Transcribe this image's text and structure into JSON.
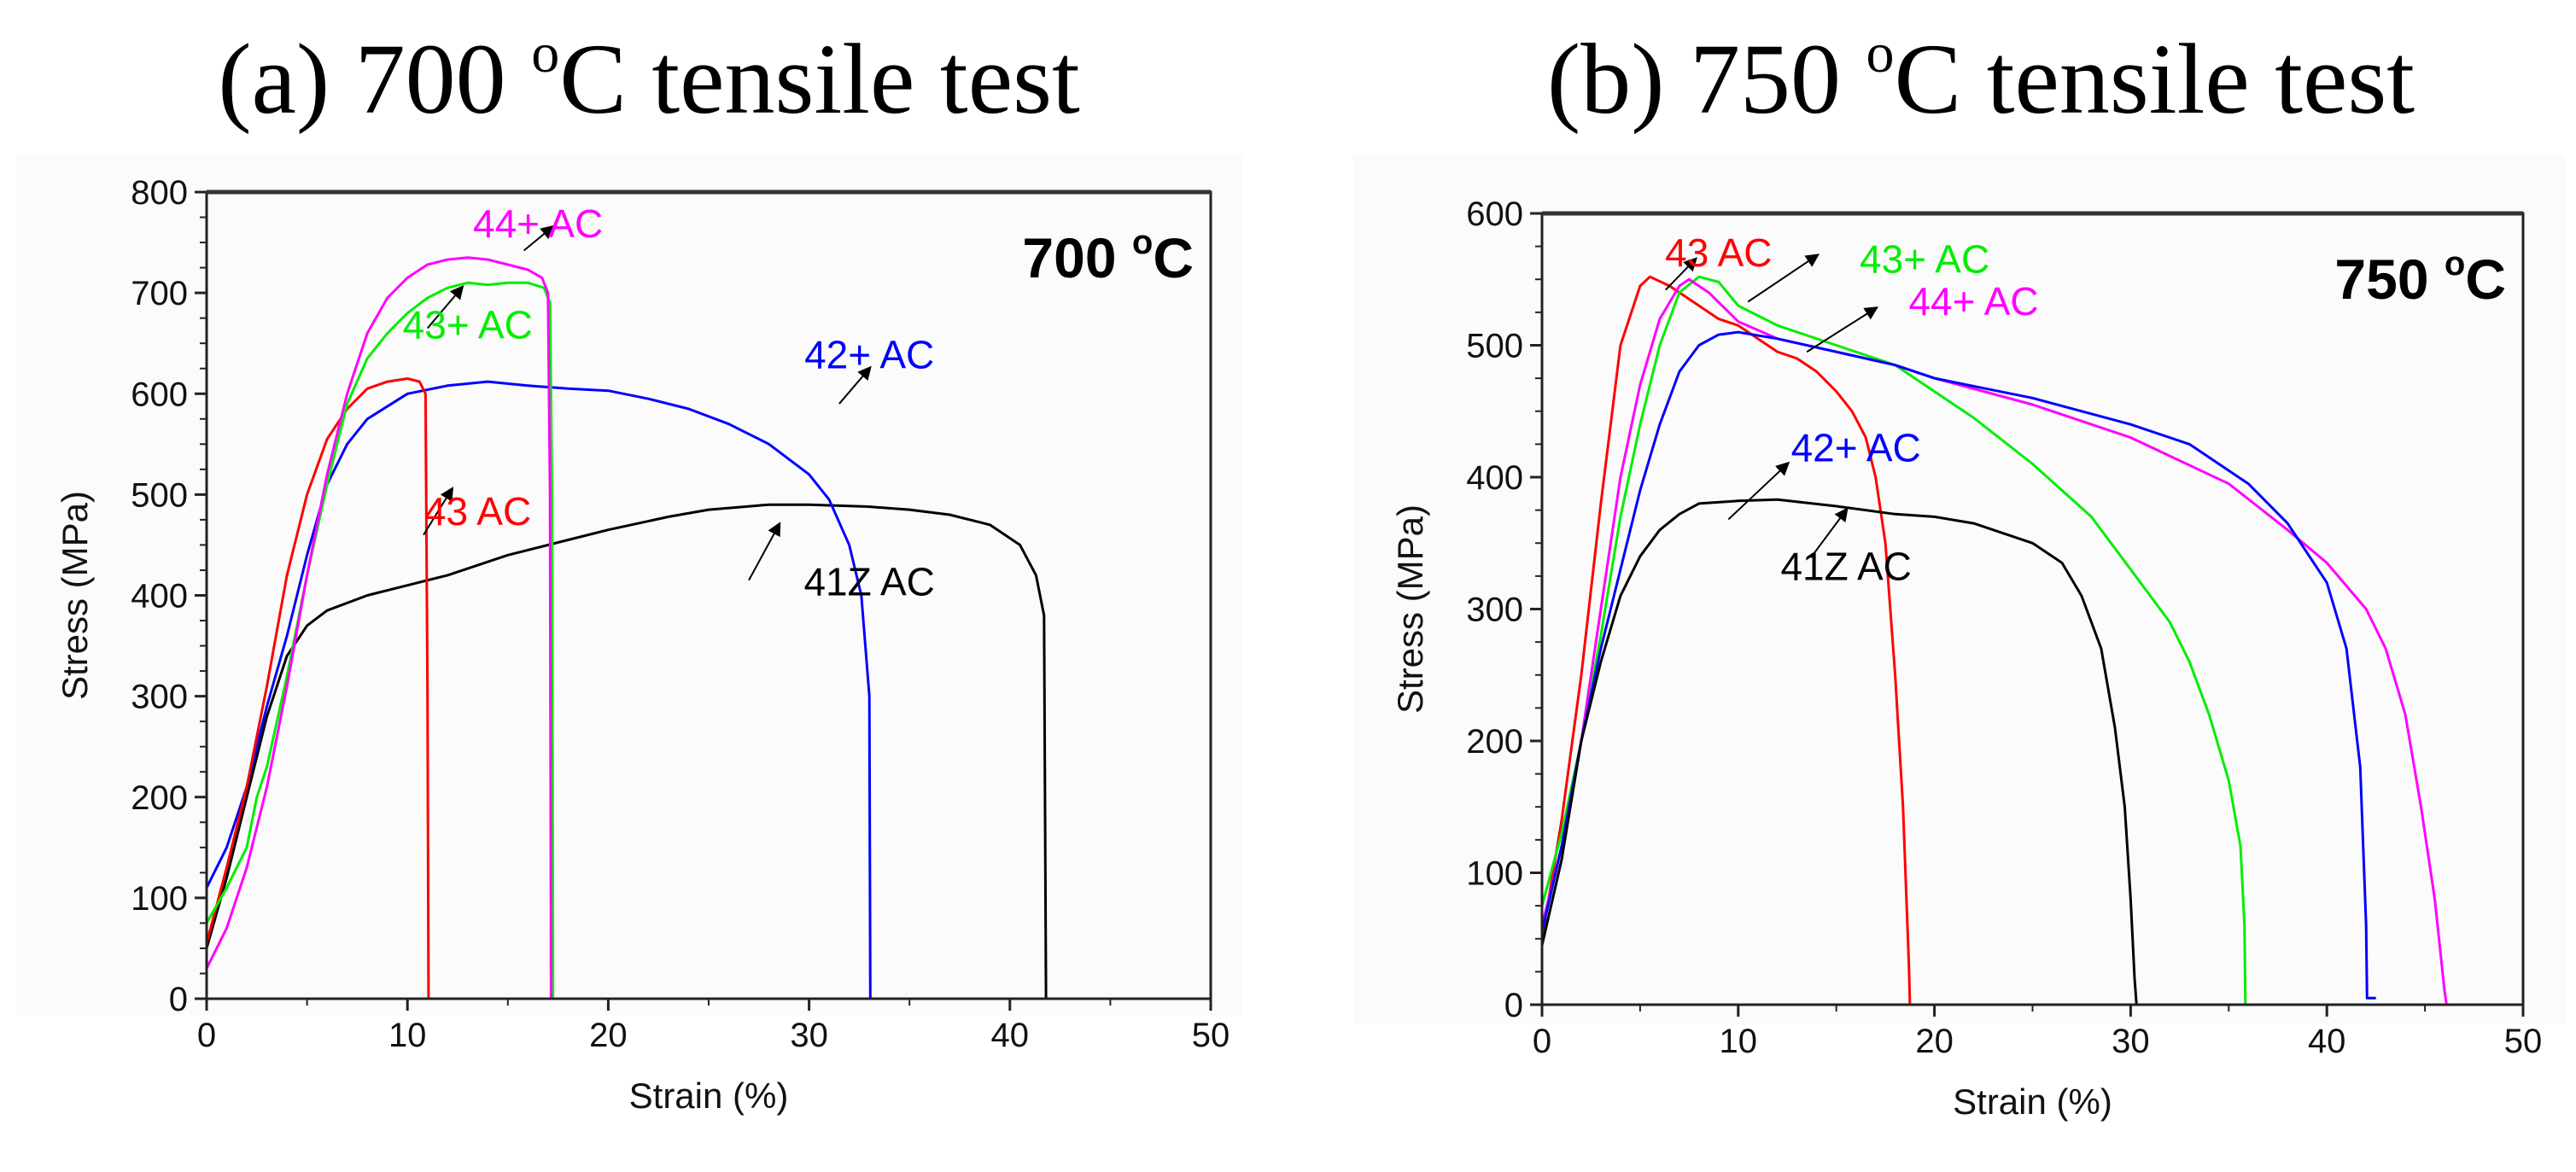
{
  "chart_data": [
    {
      "type": "line",
      "title": "(a) 700 oC tensile test",
      "title_main": "(a) 700 ",
      "title_sup": "o",
      "title_rest": "C tensile test",
      "inset_label": "700 oC",
      "inset_main": "700 ",
      "inset_sup": "o",
      "inset_rest": "C",
      "xlabel": "Strain (%)",
      "ylabel": "Stress (MPa)",
      "xlim": [
        0,
        50
      ],
      "ylim": [
        0,
        800
      ],
      "xticks": [
        0,
        10,
        20,
        30,
        40,
        50
      ],
      "yticks": [
        0,
        100,
        200,
        300,
        400,
        500,
        600,
        700,
        800
      ],
      "grid": false,
      "series": [
        {
          "name": "41Z AC",
          "color": "#000000",
          "x": [
            0,
            1,
            2,
            3,
            4,
            5,
            6,
            8,
            10,
            12,
            15,
            18,
            20,
            23,
            25,
            28,
            30,
            33,
            35,
            37,
            39,
            40.5,
            41.3,
            41.7,
            41.8
          ],
          "y": [
            50,
            120,
            200,
            280,
            340,
            370,
            385,
            400,
            410,
            420,
            440,
            455,
            465,
            478,
            485,
            490,
            490,
            488,
            485,
            480,
            470,
            450,
            420,
            380,
            0
          ]
        },
        {
          "name": "42+ AC",
          "color": "#0000ff",
          "x": [
            0,
            1,
            2,
            3,
            4,
            5,
            6,
            7,
            8,
            10,
            12,
            14,
            16,
            18,
            20,
            22,
            24,
            26,
            28,
            30,
            31,
            32,
            32.6,
            33,
            33.05
          ],
          "y": [
            110,
            150,
            210,
            290,
            360,
            440,
            510,
            550,
            575,
            600,
            608,
            612,
            608,
            605,
            603,
            595,
            585,
            570,
            550,
            520,
            495,
            450,
            400,
            300,
            0
          ]
        },
        {
          "name": "43 AC",
          "color": "#ff0000",
          "x": [
            0,
            1,
            2,
            3,
            4,
            5,
            6,
            7,
            8,
            9,
            10,
            10.6,
            10.9,
            11,
            11.05
          ],
          "y": [
            55,
            130,
            210,
            310,
            420,
            500,
            555,
            585,
            605,
            612,
            615,
            612,
            600,
            300,
            0
          ]
        },
        {
          "name": "43+ AC",
          "color": "#00ee00",
          "x": [
            0,
            1,
            2,
            2.5,
            3,
            4,
            5,
            6,
            7,
            8,
            9,
            10,
            11,
            12,
            13,
            14,
            15,
            16,
            16.8,
            17.1,
            17.2,
            17.25
          ],
          "y": [
            75,
            110,
            150,
            200,
            230,
            320,
            420,
            510,
            590,
            635,
            660,
            680,
            695,
            705,
            710,
            708,
            710,
            710,
            705,
            690,
            500,
            0
          ]
        },
        {
          "name": "44+ AC",
          "color": "#ff00ff",
          "x": [
            0,
            1,
            2,
            3,
            4,
            5,
            6,
            7,
            8,
            9,
            10,
            11,
            12,
            13,
            14,
            15,
            16,
            16.7,
            17.0,
            17.1,
            17.15
          ],
          "y": [
            30,
            70,
            130,
            210,
            310,
            420,
            520,
            600,
            660,
            695,
            715,
            728,
            733,
            735,
            733,
            728,
            723,
            715,
            700,
            500,
            0
          ]
        }
      ],
      "annotations": [
        "44+ AC",
        "43+ AC",
        "42+ AC",
        "43 AC",
        "41Z AC"
      ]
    },
    {
      "type": "line",
      "title": "(b) 750 oC tensile test",
      "title_main": "(b) 750 ",
      "title_sup": "o",
      "title_rest": "C tensile test",
      "inset_label": "750 oC",
      "inset_main": "750 ",
      "inset_sup": "o",
      "inset_rest": "C",
      "xlabel": "Strain (%)",
      "ylabel": "Stress (MPa)",
      "xlim": [
        0,
        50
      ],
      "ylim": [
        0,
        600
      ],
      "xticks": [
        0,
        10,
        20,
        30,
        40,
        50
      ],
      "yticks": [
        0,
        100,
        200,
        300,
        400,
        500,
        600
      ],
      "grid": false,
      "series": [
        {
          "name": "43 AC",
          "color": "#ff0000",
          "x": [
            0,
            1,
            2,
            3,
            4,
            5,
            5.5,
            6.5,
            8,
            9,
            10,
            11,
            12,
            13,
            14,
            15,
            15.8,
            16.5,
            17,
            17.5,
            18,
            18.4,
            18.7,
            18.75
          ],
          "y": [
            50,
            140,
            250,
            380,
            500,
            545,
            552,
            545,
            530,
            520,
            515,
            505,
            495,
            490,
            480,
            465,
            450,
            430,
            400,
            350,
            250,
            150,
            30,
            0
          ]
        },
        {
          "name": "43+ AC",
          "color": "#00ee00",
          "x": [
            0,
            1,
            2,
            3,
            4,
            5,
            6,
            7,
            8,
            9,
            10,
            12,
            15,
            18,
            20,
            22,
            25,
            28,
            30,
            32,
            33,
            34,
            35,
            35.6,
            35.8,
            35.85
          ],
          "y": [
            75,
            130,
            200,
            280,
            370,
            440,
            500,
            540,
            552,
            548,
            530,
            515,
            500,
            485,
            465,
            445,
            410,
            370,
            330,
            290,
            260,
            220,
            170,
            120,
            60,
            0
          ]
        },
        {
          "name": "44+ AC",
          "color": "#ff00ff",
          "x": [
            0,
            1,
            2,
            3,
            4,
            5,
            6,
            7,
            7.5,
            8.5,
            10,
            12,
            15,
            18,
            20,
            25,
            30,
            35,
            38,
            40,
            42,
            43,
            44,
            44.8,
            45.5,
            46,
            46.1
          ],
          "y": [
            60,
            120,
            200,
            300,
            400,
            470,
            520,
            545,
            550,
            540,
            518,
            505,
            495,
            485,
            475,
            455,
            430,
            395,
            360,
            335,
            300,
            270,
            220,
            150,
            80,
            10,
            0
          ]
        },
        {
          "name": "42+ AC",
          "color": "#0000ff",
          "x": [
            0,
            1,
            2,
            3,
            4,
            5,
            6,
            7,
            8,
            9,
            10,
            12,
            15,
            18,
            20,
            25,
            30,
            33,
            36,
            38,
            40,
            41,
            41.7,
            42,
            42.05,
            42.5
          ],
          "y": [
            55,
            120,
            200,
            270,
            330,
            390,
            440,
            480,
            500,
            508,
            510,
            505,
            495,
            485,
            475,
            460,
            440,
            425,
            395,
            365,
            320,
            270,
            180,
            60,
            5,
            5
          ]
        },
        {
          "name": "41Z AC",
          "color": "#000000",
          "x": [
            0,
            1,
            2,
            3,
            4,
            5,
            6,
            7,
            8,
            10,
            12,
            15,
            18,
            20,
            22,
            25,
            26.5,
            27.5,
            28.5,
            29.2,
            29.7,
            30,
            30.2,
            30.3
          ],
          "y": [
            45,
            110,
            200,
            260,
            310,
            340,
            360,
            372,
            380,
            382,
            383,
            378,
            372,
            370,
            365,
            350,
            335,
            310,
            270,
            210,
            150,
            80,
            20,
            0
          ]
        }
      ],
      "annotations": [
        "43 AC",
        "43+ AC",
        "44+ AC",
        "42+ AC",
        "41Z AC"
      ]
    }
  ]
}
